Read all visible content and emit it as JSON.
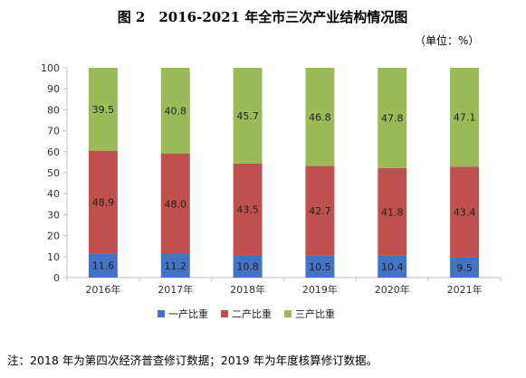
{
  "chart_data": {
    "type": "bar",
    "stacked": true,
    "title": "图 2　2016-2021 年全市三次产业结构情况图",
    "unit": "（单位：%）",
    "categories": [
      "2016年",
      "2017年",
      "2018年",
      "2019年",
      "2020年",
      "2021年"
    ],
    "series": [
      {
        "name": "一产比重",
        "color": "#4472c4",
        "values": [
          11.6,
          11.2,
          10.8,
          10.5,
          10.4,
          9.5
        ]
      },
      {
        "name": "二产比重",
        "color": "#c0504d",
        "values": [
          48.9,
          48.0,
          43.5,
          42.7,
          41.8,
          43.4
        ]
      },
      {
        "name": "三产比重",
        "color": "#9bbb59",
        "values": [
          39.5,
          40.8,
          45.7,
          46.8,
          47.8,
          47.1
        ]
      }
    ],
    "ylim": [
      0,
      100
    ],
    "yticks": [
      0,
      10,
      20,
      30,
      40,
      50,
      60,
      70,
      80,
      90,
      100
    ],
    "grid": false,
    "legend_position": "bottom",
    "data_labels": true
  },
  "note": "注：2018 年为第四次经济普查修订数据；2019 年为年度核算修订数据。"
}
